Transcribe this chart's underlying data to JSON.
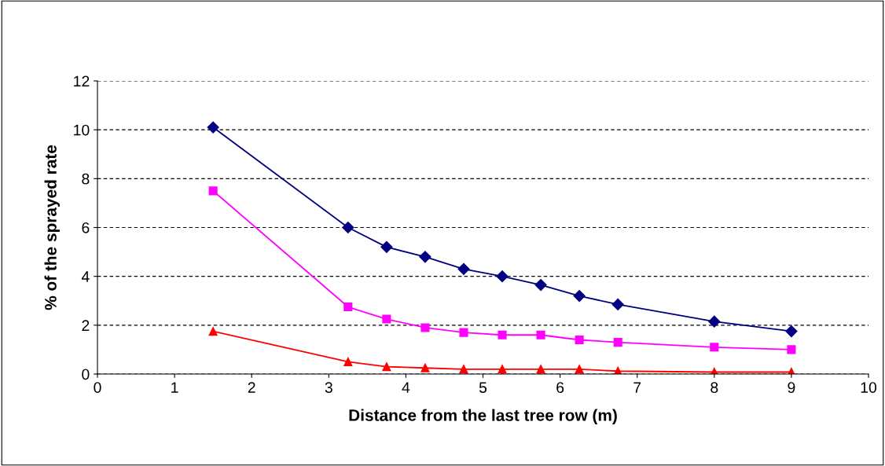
{
  "chart_data": {
    "type": "line",
    "xlabel": "Distance from the last tree row (m)",
    "ylabel": "% of the sprayed rate",
    "x": [
      1.5,
      3.25,
      3.75,
      4.25,
      4.75,
      5.25,
      5.75,
      6.25,
      6.75,
      8,
      9
    ],
    "series": [
      {
        "color": "#000080",
        "marker": "diamond",
        "values": [
          10.1,
          6.0,
          5.2,
          4.8,
          4.3,
          4.0,
          3.65,
          3.2,
          2.85,
          2.15,
          1.75
        ]
      },
      {
        "color": "#ff00ff",
        "marker": "square",
        "values": [
          7.5,
          2.75,
          2.25,
          1.9,
          1.7,
          1.6,
          1.6,
          1.4,
          1.3,
          1.1,
          1.0
        ]
      },
      {
        "color": "#ff0000",
        "marker": "triangle",
        "values": [
          1.75,
          0.5,
          0.3,
          0.25,
          0.2,
          0.2,
          0.2,
          0.2,
          0.12,
          0.08,
          0.08
        ]
      }
    ],
    "xlim": [
      0,
      10
    ],
    "xticks": [
      0,
      1,
      2,
      3,
      4,
      5,
      6,
      7,
      8,
      9,
      10
    ],
    "ylim": [
      0,
      12
    ],
    "yticks": [
      0,
      2,
      4,
      6,
      8,
      10,
      12
    ],
    "grid": "y",
    "line_style": "solid"
  }
}
